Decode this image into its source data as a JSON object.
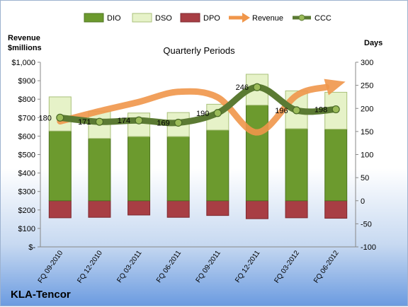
{
  "chart_data": {
    "type": "bar",
    "title": "Quarterly Periods",
    "company": "KLA-Tencor",
    "left_axis_title": [
      "Revenue",
      "$millions"
    ],
    "right_axis_title": "Days",
    "categories": [
      "FQ 09-2010",
      "FQ 12-2010",
      "FQ 03-2011",
      "FQ 06-2011",
      "FQ 09-2011",
      "FQ 12-2011",
      "FQ 03-2012",
      "FQ 06-2012"
    ],
    "left_ticks": [
      "$-",
      "$100",
      "$200",
      "$300",
      "$400",
      "$500",
      "$600",
      "$700",
      "$800",
      "$900",
      "$1,000"
    ],
    "right_ticks": [
      "-100",
      "-50",
      "0",
      "50",
      "100",
      "150",
      "200",
      "250",
      "300"
    ],
    "ylim_left": [
      0,
      1000
    ],
    "ylim_right": [
      -100,
      300
    ],
    "series": [
      {
        "name": "DIO",
        "type": "bar",
        "color": "#6c9a2e",
        "values": [
          151,
          135,
          139,
          139,
          153,
          207,
          156,
          155
        ]
      },
      {
        "name": "DSO",
        "type": "bar",
        "color": "#e6f2c8",
        "values": [
          74,
          59,
          51,
          52,
          56,
          67,
          82,
          80
        ]
      },
      {
        "name": "DPO",
        "type": "bar",
        "color": "#a83e44",
        "values": [
          -37,
          -36,
          -31,
          -36,
          -32,
          -39,
          -37,
          -38
        ]
      },
      {
        "name": "Revenue",
        "type": "line",
        "color": "#f0964a",
        "values": [
          680,
          735,
          785,
          840,
          810,
          620,
          820,
          880
        ]
      },
      {
        "name": "CCC",
        "type": "line",
        "color": "#5b7a33",
        "values": [
          180,
          171,
          174,
          169,
          190,
          246,
          196,
          198
        ]
      }
    ],
    "ccc_labels": [
      "180",
      "171",
      "174",
      "169",
      "190",
      "246",
      "196",
      "198"
    ],
    "grid": false,
    "legend": "top"
  }
}
